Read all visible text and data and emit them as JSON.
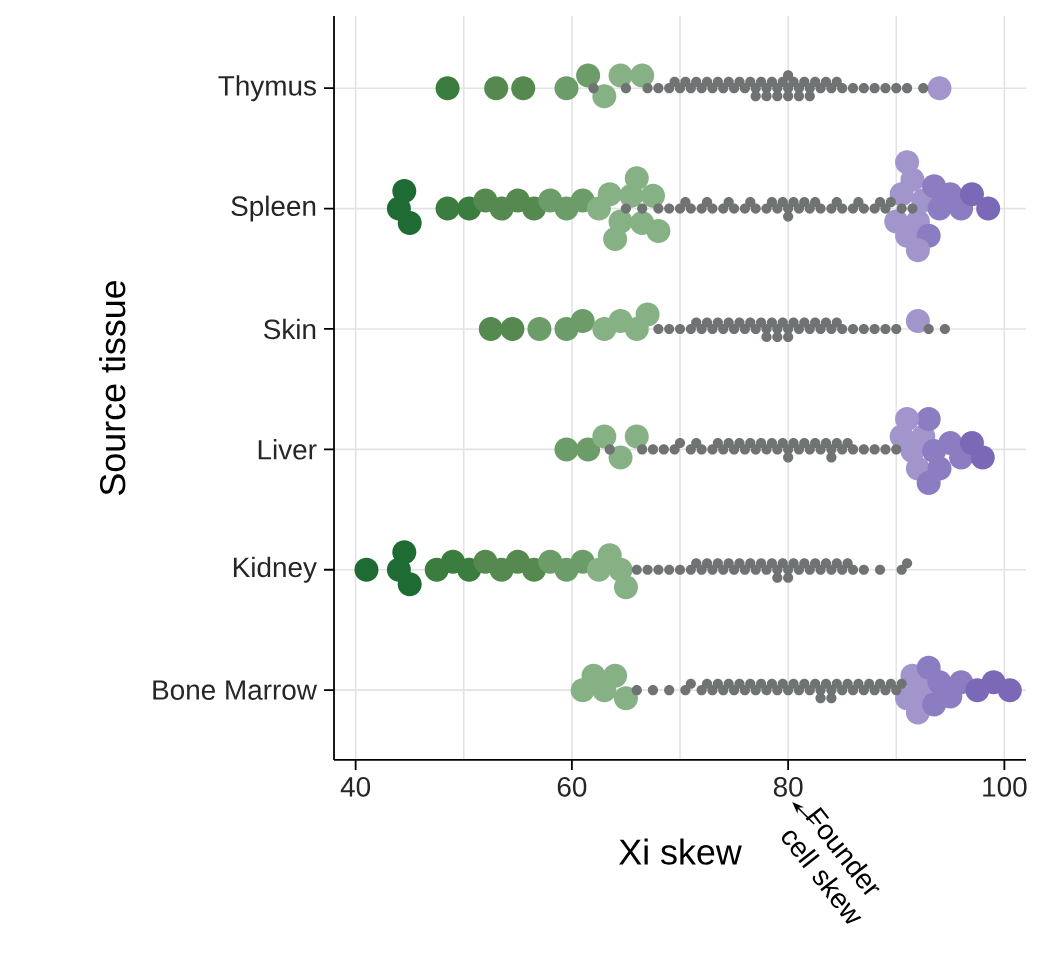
{
  "chart_data": {
    "type": "scatter",
    "orientation": "horizontal",
    "marker": "circle",
    "grid": true,
    "xlabel": "Xi skew",
    "ylabel": "Source tissue",
    "categories": [
      "Thymus",
      "Spleen",
      "Skin",
      "Liver",
      "Kidney",
      "Bone Marrow"
    ],
    "xlim": [
      38,
      102
    ],
    "xticks": [
      40,
      {
        "value": 50,
        "label": null
      },
      60,
      {
        "value": 70,
        "label": null
      },
      80,
      {
        "value": 90,
        "label": null
      },
      100
    ],
    "annotations": [
      "Founder cell skew"
    ],
    "series": [
      {
        "x": [
          "Thymus",
          "Thymus",
          "Thymus",
          "Thymus",
          "Thymus",
          "Thymus",
          "Thymus",
          "Thymus",
          "Thymus",
          "Thymus",
          "Thymus",
          "Thymus",
          "Thymus",
          "Thymus",
          "Thymus",
          "Thymus",
          "Thymus",
          "Thymus",
          "Thymus",
          "Thymus",
          "Thymus",
          "Thymus",
          "Thymus",
          "Thymus",
          "Thymus",
          "Thymus",
          "Thymus",
          "Thymus",
          "Thymus",
          "Thymus",
          "Thymus",
          "Thymus",
          "Thymus",
          "Thymus",
          "Thymus",
          "Thymus",
          "Thymus",
          "Thymus",
          "Thymus",
          "Thymus",
          "Thymus",
          "Thymus",
          "Thymus",
          "Thymus",
          "Thymus",
          "Thymus",
          "Thymus",
          "Thymus",
          "Thymus",
          "Thymus",
          "Thymus",
          "Thymus",
          "Thymus",
          "Thymus",
          "Thymus",
          "Thymus",
          "Thymus",
          "Thymus",
          "Thymus",
          "Thymus"
        ],
        "values": [
          62,
          65,
          67,
          68,
          69,
          69.5,
          70,
          70.5,
          71,
          71.5,
          72,
          72.5,
          73,
          73.5,
          74,
          74.5,
          75,
          75.5,
          76,
          76.5,
          77,
          77,
          77.5,
          78,
          78,
          78.5,
          79,
          79,
          79.5,
          80,
          80,
          80,
          80.5,
          81,
          81,
          81.5,
          82,
          82,
          82.5,
          83,
          83.5,
          84,
          84.5,
          85,
          86,
          87,
          88,
          89,
          90,
          91,
          92.5,
          48.5,
          53,
          55.5,
          59.5,
          61.5,
          63,
          64.5,
          66.5,
          94
        ],
        "colors": [
          "#707374",
          "#707374",
          "#707374",
          "#707374",
          "#707374",
          "#707374",
          "#707374",
          "#707374",
          "#707374",
          "#707374",
          "#707374",
          "#707374",
          "#707374",
          "#707374",
          "#707374",
          "#707374",
          "#707374",
          "#707374",
          "#707374",
          "#707374",
          "#707374",
          "#707374",
          "#707374",
          "#707374",
          "#707374",
          "#707374",
          "#707374",
          "#707374",
          "#707374",
          "#707374",
          "#707374",
          "#707374",
          "#707374",
          "#707374",
          "#707374",
          "#707374",
          "#707374",
          "#707374",
          "#707374",
          "#707374",
          "#707374",
          "#707374",
          "#707374",
          "#707374",
          "#707374",
          "#707374",
          "#707374",
          "#707374",
          "#707374",
          "#707374",
          "#707374",
          "#3a7d3f",
          "#55894f",
          "#55894f",
          "#6c9c68",
          "#6c9c68",
          "#86b184",
          "#86b184",
          "#86b184",
          "#a195cc"
        ],
        "sizes": [
          0.18,
          0.18,
          0.18,
          0.18,
          0.18,
          0.18,
          0.18,
          0.18,
          0.18,
          0.18,
          0.18,
          0.18,
          0.18,
          0.18,
          0.18,
          0.18,
          0.18,
          0.18,
          0.18,
          0.18,
          0.18,
          0.18,
          0.18,
          0.18,
          0.18,
          0.18,
          0.18,
          0.18,
          0.18,
          0.18,
          0.18,
          0.18,
          0.18,
          0.18,
          0.18,
          0.18,
          0.18,
          0.18,
          0.18,
          0.18,
          0.18,
          0.18,
          0.18,
          0.18,
          0.18,
          0.18,
          0.18,
          0.18,
          0.18,
          0.18,
          0.18,
          1,
          1,
          1,
          1,
          1,
          1,
          1,
          1,
          1
        ]
      },
      {
        "x": [
          "Spleen",
          "Spleen",
          "Spleen",
          "Spleen",
          "Spleen",
          "Spleen",
          "Spleen",
          "Spleen",
          "Spleen",
          "Spleen",
          "Spleen",
          "Spleen",
          "Spleen",
          "Spleen",
          "Spleen",
          "Spleen",
          "Spleen",
          "Spleen",
          "Spleen",
          "Spleen",
          "Spleen",
          "Spleen",
          "Spleen",
          "Spleen",
          "Spleen",
          "Spleen",
          "Spleen",
          "Spleen",
          "Spleen",
          "Spleen",
          "Spleen",
          "Spleen",
          "Spleen",
          "Spleen",
          "Spleen",
          "Spleen",
          "Spleen",
          "Spleen",
          "Spleen",
          "Spleen",
          "Spleen",
          "Spleen",
          "Spleen",
          "Spleen",
          "Spleen",
          "Spleen",
          "Spleen",
          "Spleen",
          "Spleen",
          "Spleen",
          "Spleen",
          "Spleen",
          "Spleen",
          "Spleen",
          "Spleen",
          "Spleen",
          "Spleen",
          "Spleen",
          "Spleen",
          "Spleen",
          "Spleen",
          "Spleen",
          "Spleen",
          "Spleen",
          "Spleen",
          "Spleen",
          "Spleen",
          "Spleen",
          "Spleen",
          "Spleen",
          "Spleen",
          "Spleen",
          "Spleen",
          "Spleen",
          "Spleen",
          "Spleen"
        ],
        "values": [
          65,
          66.5,
          68,
          69,
          70,
          70.5,
          71,
          72,
          72.5,
          73,
          74,
          74.5,
          75,
          76,
          76.5,
          77,
          78,
          78.5,
          79,
          79.5,
          80,
          80,
          80.5,
          81,
          81.5,
          82,
          82.5,
          83,
          84,
          84.5,
          85,
          86,
          86.5,
          87,
          88,
          88.5,
          89,
          89.5,
          90.5,
          91.5,
          44,
          44.5,
          45,
          48.5,
          50.5,
          52,
          53.5,
          55,
          56.5,
          58,
          59.5,
          61,
          62.5,
          63.5,
          64.5,
          65.5,
          66.5,
          67.5,
          68,
          66,
          64,
          90,
          90.5,
          91,
          91.5,
          92,
          92.5,
          93,
          93.5,
          94,
          95,
          96,
          97,
          98.5,
          91,
          92
        ],
        "colors": [
          "#707374",
          "#707374",
          "#707374",
          "#707374",
          "#707374",
          "#707374",
          "#707374",
          "#707374",
          "#707374",
          "#707374",
          "#707374",
          "#707374",
          "#707374",
          "#707374",
          "#707374",
          "#707374",
          "#707374",
          "#707374",
          "#707374",
          "#707374",
          "#707374",
          "#707374",
          "#707374",
          "#707374",
          "#707374",
          "#707374",
          "#707374",
          "#707374",
          "#707374",
          "#707374",
          "#707374",
          "#707374",
          "#707374",
          "#707374",
          "#707374",
          "#707374",
          "#707374",
          "#707374",
          "#707374",
          "#707374",
          "#1e6b34",
          "#1e6b34",
          "#1e6b34",
          "#3a7d3f",
          "#3a7d3f",
          "#55894f",
          "#55894f",
          "#55894f",
          "#55894f",
          "#6c9c68",
          "#6c9c68",
          "#6c9c68",
          "#86b184",
          "#86b184",
          "#86b184",
          "#86b184",
          "#86b184",
          "#86b184",
          "#86b184",
          "#86b184",
          "#86b184",
          "#a195cc",
          "#a195cc",
          "#a195cc",
          "#a195cc",
          "#a195cc",
          "#a195cc",
          "#8c7cc2",
          "#8c7cc2",
          "#8c7cc2",
          "#8c7cc2",
          "#8c7cc2",
          "#7b69b8",
          "#7b69b8",
          "#a195cc",
          "#a195cc"
        ],
        "sizes": [
          0.18,
          0.18,
          0.18,
          0.18,
          0.18,
          0.18,
          0.18,
          0.18,
          0.18,
          0.18,
          0.18,
          0.18,
          0.18,
          0.18,
          0.18,
          0.18,
          0.18,
          0.18,
          0.18,
          0.18,
          0.18,
          0.18,
          0.18,
          0.18,
          0.18,
          0.18,
          0.18,
          0.18,
          0.18,
          0.18,
          0.18,
          0.18,
          0.18,
          0.18,
          0.18,
          0.18,
          0.18,
          0.18,
          0.18,
          0.18,
          1,
          1,
          1,
          1,
          1,
          1,
          1,
          1,
          1,
          1,
          1,
          1,
          1,
          1,
          1,
          1,
          1,
          1,
          1,
          1,
          1,
          1,
          1,
          1,
          1,
          1,
          1,
          1,
          1,
          1,
          1,
          1,
          1,
          1,
          1,
          1
        ]
      },
      {
        "x": [
          "Skin",
          "Skin",
          "Skin",
          "Skin",
          "Skin",
          "Skin",
          "Skin",
          "Skin",
          "Skin",
          "Skin",
          "Skin",
          "Skin",
          "Skin",
          "Skin",
          "Skin",
          "Skin",
          "Skin",
          "Skin",
          "Skin",
          "Skin",
          "Skin",
          "Skin",
          "Skin",
          "Skin",
          "Skin",
          "Skin",
          "Skin",
          "Skin",
          "Skin",
          "Skin",
          "Skin",
          "Skin",
          "Skin",
          "Skin",
          "Skin",
          "Skin",
          "Skin",
          "Skin",
          "Skin",
          "Skin",
          "Skin",
          "Skin",
          "Skin",
          "Skin",
          "Skin",
          "Skin",
          "Skin",
          "Skin",
          "Skin",
          "Skin",
          "Skin",
          "Skin"
        ],
        "values": [
          68,
          69,
          70,
          71,
          71.5,
          72,
          72.5,
          73,
          73.5,
          74,
          74.5,
          75,
          75.5,
          76,
          76.5,
          77,
          77.5,
          78,
          78,
          78.5,
          79,
          79,
          79.5,
          80,
          80,
          80.5,
          81,
          81.5,
          82,
          82.5,
          83,
          83.5,
          84,
          84.5,
          85,
          86,
          87,
          88,
          89,
          90,
          93,
          94.5,
          52.5,
          54.5,
          57,
          59.5,
          61,
          63,
          64.5,
          66,
          67,
          92
        ],
        "colors": [
          "#707374",
          "#707374",
          "#707374",
          "#707374",
          "#707374",
          "#707374",
          "#707374",
          "#707374",
          "#707374",
          "#707374",
          "#707374",
          "#707374",
          "#707374",
          "#707374",
          "#707374",
          "#707374",
          "#707374",
          "#707374",
          "#707374",
          "#707374",
          "#707374",
          "#707374",
          "#707374",
          "#707374",
          "#707374",
          "#707374",
          "#707374",
          "#707374",
          "#707374",
          "#707374",
          "#707374",
          "#707374",
          "#707374",
          "#707374",
          "#707374",
          "#707374",
          "#707374",
          "#707374",
          "#707374",
          "#707374",
          "#707374",
          "#707374",
          "#55894f",
          "#55894f",
          "#6c9c68",
          "#6c9c68",
          "#6c9c68",
          "#86b184",
          "#86b184",
          "#86b184",
          "#86b184",
          "#a195cc"
        ],
        "sizes": [
          0.18,
          0.18,
          0.18,
          0.18,
          0.18,
          0.18,
          0.18,
          0.18,
          0.18,
          0.18,
          0.18,
          0.18,
          0.18,
          0.18,
          0.18,
          0.18,
          0.18,
          0.18,
          0.18,
          0.18,
          0.18,
          0.18,
          0.18,
          0.18,
          0.18,
          0.18,
          0.18,
          0.18,
          0.18,
          0.18,
          0.18,
          0.18,
          0.18,
          0.18,
          0.18,
          0.18,
          0.18,
          0.18,
          0.18,
          0.18,
          0.18,
          0.18,
          1,
          1,
          1,
          1,
          1,
          1,
          1,
          1,
          1,
          1
        ]
      },
      {
        "x": [
          "Liver",
          "Liver",
          "Liver",
          "Liver",
          "Liver",
          "Liver",
          "Liver",
          "Liver",
          "Liver",
          "Liver",
          "Liver",
          "Liver",
          "Liver",
          "Liver",
          "Liver",
          "Liver",
          "Liver",
          "Liver",
          "Liver",
          "Liver",
          "Liver",
          "Liver",
          "Liver",
          "Liver",
          "Liver",
          "Liver",
          "Liver",
          "Liver",
          "Liver",
          "Liver",
          "Liver",
          "Liver",
          "Liver",
          "Liver",
          "Liver",
          "Liver",
          "Liver",
          "Liver",
          "Liver",
          "Liver",
          "Liver",
          "Liver",
          "Liver",
          "Liver",
          "Liver",
          "Liver",
          "Liver",
          "Liver",
          "Liver",
          "Liver",
          "Liver",
          "Liver",
          "Liver",
          "Liver",
          "Liver",
          "Liver",
          "Liver",
          "Liver",
          "Liver",
          "Liver"
        ],
        "values": [
          63.5,
          66.5,
          67.5,
          68.5,
          69.5,
          70,
          71,
          71.5,
          72,
          73,
          73.5,
          74,
          74.5,
          75,
          75.5,
          76,
          76.5,
          77,
          77.5,
          78,
          78.5,
          79,
          79.5,
          80,
          80,
          80.5,
          81,
          81.5,
          82,
          82.5,
          83,
          83.5,
          84,
          84,
          84.5,
          85,
          85.5,
          86,
          87,
          88,
          89,
          90,
          59.5,
          61.5,
          63,
          64.5,
          66,
          90.5,
          91.5,
          92,
          92.5,
          93,
          93.5,
          94,
          95,
          96,
          97,
          98,
          91,
          93
        ],
        "colors": [
          "#707374",
          "#707374",
          "#707374",
          "#707374",
          "#707374",
          "#707374",
          "#707374",
          "#707374",
          "#707374",
          "#707374",
          "#707374",
          "#707374",
          "#707374",
          "#707374",
          "#707374",
          "#707374",
          "#707374",
          "#707374",
          "#707374",
          "#707374",
          "#707374",
          "#707374",
          "#707374",
          "#707374",
          "#707374",
          "#707374",
          "#707374",
          "#707374",
          "#707374",
          "#707374",
          "#707374",
          "#707374",
          "#707374",
          "#707374",
          "#707374",
          "#707374",
          "#707374",
          "#707374",
          "#707374",
          "#707374",
          "#707374",
          "#707374",
          "#6c9c68",
          "#6c9c68",
          "#86b184",
          "#86b184",
          "#86b184",
          "#a195cc",
          "#a195cc",
          "#a195cc",
          "#a195cc",
          "#8c7cc2",
          "#8c7cc2",
          "#8c7cc2",
          "#8c7cc2",
          "#8c7cc2",
          "#7b69b8",
          "#7b69b8",
          "#a195cc",
          "#8c7cc2"
        ],
        "sizes": [
          0.18,
          0.18,
          0.18,
          0.18,
          0.18,
          0.18,
          0.18,
          0.18,
          0.18,
          0.18,
          0.18,
          0.18,
          0.18,
          0.18,
          0.18,
          0.18,
          0.18,
          0.18,
          0.18,
          0.18,
          0.18,
          0.18,
          0.18,
          0.18,
          0.18,
          0.18,
          0.18,
          0.18,
          0.18,
          0.18,
          0.18,
          0.18,
          0.18,
          0.18,
          0.18,
          0.18,
          0.18,
          0.18,
          0.18,
          0.18,
          0.18,
          0.18,
          1,
          1,
          1,
          1,
          1,
          1,
          1,
          1,
          1,
          1,
          1,
          1,
          1,
          1,
          1,
          1,
          1,
          1
        ]
      },
      {
        "x": [
          "Kidney",
          "Kidney",
          "Kidney",
          "Kidney",
          "Kidney",
          "Kidney",
          "Kidney",
          "Kidney",
          "Kidney",
          "Kidney",
          "Kidney",
          "Kidney",
          "Kidney",
          "Kidney",
          "Kidney",
          "Kidney",
          "Kidney",
          "Kidney",
          "Kidney",
          "Kidney",
          "Kidney",
          "Kidney",
          "Kidney",
          "Kidney",
          "Kidney",
          "Kidney",
          "Kidney",
          "Kidney",
          "Kidney",
          "Kidney",
          "Kidney",
          "Kidney",
          "Kidney",
          "Kidney",
          "Kidney",
          "Kidney",
          "Kidney",
          "Kidney",
          "Kidney",
          "Kidney",
          "Kidney",
          "Kidney",
          "Kidney",
          "Kidney",
          "Kidney",
          "Kidney",
          "Kidney",
          "Kidney",
          "Kidney",
          "Kidney",
          "Kidney",
          "Kidney",
          "Kidney",
          "Kidney",
          "Kidney",
          "Kidney",
          "Kidney",
          "Kidney",
          "Kidney",
          "Kidney"
        ],
        "values": [
          66,
          67,
          68,
          69,
          70,
          71,
          71.5,
          72,
          72.5,
          73,
          73.5,
          74,
          74.5,
          75,
          75.5,
          76,
          76.5,
          77,
          77.5,
          78,
          78.5,
          79,
          79,
          79.5,
          80,
          80,
          80.5,
          81,
          81.5,
          82,
          82.5,
          83,
          83.5,
          84,
          84.5,
          85,
          85.5,
          86,
          87,
          88.5,
          90.5,
          91,
          41,
          44,
          44.5,
          45,
          47.5,
          49,
          50.5,
          52,
          53.5,
          55,
          56.5,
          58,
          59.5,
          61,
          62.5,
          63.5,
          64.5,
          65
        ],
        "colors": [
          "#707374",
          "#707374",
          "#707374",
          "#707374",
          "#707374",
          "#707374",
          "#707374",
          "#707374",
          "#707374",
          "#707374",
          "#707374",
          "#707374",
          "#707374",
          "#707374",
          "#707374",
          "#707374",
          "#707374",
          "#707374",
          "#707374",
          "#707374",
          "#707374",
          "#707374",
          "#707374",
          "#707374",
          "#707374",
          "#707374",
          "#707374",
          "#707374",
          "#707374",
          "#707374",
          "#707374",
          "#707374",
          "#707374",
          "#707374",
          "#707374",
          "#707374",
          "#707374",
          "#707374",
          "#707374",
          "#707374",
          "#707374",
          "#707374",
          "#1e6b34",
          "#1e6b34",
          "#1e6b34",
          "#1e6b34",
          "#3a7d3f",
          "#3a7d3f",
          "#3a7d3f",
          "#55894f",
          "#55894f",
          "#55894f",
          "#55894f",
          "#6c9c68",
          "#6c9c68",
          "#6c9c68",
          "#86b184",
          "#86b184",
          "#86b184",
          "#86b184"
        ],
        "sizes": [
          0.18,
          0.18,
          0.18,
          0.18,
          0.18,
          0.18,
          0.18,
          0.18,
          0.18,
          0.18,
          0.18,
          0.18,
          0.18,
          0.18,
          0.18,
          0.18,
          0.18,
          0.18,
          0.18,
          0.18,
          0.18,
          0.18,
          0.18,
          0.18,
          0.18,
          0.18,
          0.18,
          0.18,
          0.18,
          0.18,
          0.18,
          0.18,
          0.18,
          0.18,
          0.18,
          0.18,
          0.18,
          0.18,
          0.18,
          0.18,
          0.18,
          0.18,
          1,
          1,
          1,
          1,
          1,
          1,
          1,
          1,
          1,
          1,
          1,
          1,
          1,
          1,
          1,
          1,
          1,
          1
        ]
      },
      {
        "x": [
          "Bone Marrow",
          "Bone Marrow",
          "Bone Marrow",
          "Bone Marrow",
          "Bone Marrow",
          "Bone Marrow",
          "Bone Marrow",
          "Bone Marrow",
          "Bone Marrow",
          "Bone Marrow",
          "Bone Marrow",
          "Bone Marrow",
          "Bone Marrow",
          "Bone Marrow",
          "Bone Marrow",
          "Bone Marrow",
          "Bone Marrow",
          "Bone Marrow",
          "Bone Marrow",
          "Bone Marrow",
          "Bone Marrow",
          "Bone Marrow",
          "Bone Marrow",
          "Bone Marrow",
          "Bone Marrow",
          "Bone Marrow",
          "Bone Marrow",
          "Bone Marrow",
          "Bone Marrow",
          "Bone Marrow",
          "Bone Marrow",
          "Bone Marrow",
          "Bone Marrow",
          "Bone Marrow",
          "Bone Marrow",
          "Bone Marrow",
          "Bone Marrow",
          "Bone Marrow",
          "Bone Marrow",
          "Bone Marrow",
          "Bone Marrow",
          "Bone Marrow",
          "Bone Marrow",
          "Bone Marrow",
          "Bone Marrow",
          "Bone Marrow",
          "Bone Marrow",
          "Bone Marrow",
          "Bone Marrow",
          "Bone Marrow",
          "Bone Marrow",
          "Bone Marrow",
          "Bone Marrow",
          "Bone Marrow",
          "Bone Marrow",
          "Bone Marrow",
          "Bone Marrow",
          "Bone Marrow",
          "Bone Marrow",
          "Bone Marrow",
          "Bone Marrow",
          "Bone Marrow"
        ],
        "values": [
          66,
          67.5,
          69,
          70.5,
          71,
          72,
          72.5,
          73,
          73.5,
          74,
          74.5,
          75,
          75.5,
          76,
          76.5,
          77,
          77.5,
          78,
          78.5,
          79,
          79.5,
          80,
          80.5,
          81,
          81.5,
          82,
          82.5,
          83,
          83,
          83.5,
          84,
          84,
          84.5,
          85,
          85.5,
          86,
          86.5,
          87,
          87.5,
          88,
          88.5,
          89,
          89.5,
          90,
          90.5,
          61,
          62,
          63,
          64,
          65,
          91,
          91.5,
          92,
          92.5,
          93,
          93.5,
          94,
          95,
          96,
          97.5,
          99,
          100.5
        ],
        "colors": [
          "#707374",
          "#707374",
          "#707374",
          "#707374",
          "#707374",
          "#707374",
          "#707374",
          "#707374",
          "#707374",
          "#707374",
          "#707374",
          "#707374",
          "#707374",
          "#707374",
          "#707374",
          "#707374",
          "#707374",
          "#707374",
          "#707374",
          "#707374",
          "#707374",
          "#707374",
          "#707374",
          "#707374",
          "#707374",
          "#707374",
          "#707374",
          "#707374",
          "#707374",
          "#707374",
          "#707374",
          "#707374",
          "#707374",
          "#707374",
          "#707374",
          "#707374",
          "#707374",
          "#707374",
          "#707374",
          "#707374",
          "#707374",
          "#707374",
          "#707374",
          "#707374",
          "#707374",
          "#86b184",
          "#86b184",
          "#86b184",
          "#86b184",
          "#86b184",
          "#a195cc",
          "#a195cc",
          "#a195cc",
          "#a195cc",
          "#8c7cc2",
          "#8c7cc2",
          "#8c7cc2",
          "#8c7cc2",
          "#8c7cc2",
          "#7b69b8",
          "#7b69b8",
          "#7b69b8"
        ],
        "sizes": [
          0.18,
          0.18,
          0.18,
          0.18,
          0.18,
          0.18,
          0.18,
          0.18,
          0.18,
          0.18,
          0.18,
          0.18,
          0.18,
          0.18,
          0.18,
          0.18,
          0.18,
          0.18,
          0.18,
          0.18,
          0.18,
          0.18,
          0.18,
          0.18,
          0.18,
          0.18,
          0.18,
          0.18,
          0.18,
          0.18,
          0.18,
          0.18,
          0.18,
          0.18,
          0.18,
          0.18,
          0.18,
          0.18,
          0.18,
          0.18,
          0.18,
          0.18,
          0.18,
          0.18,
          0.18,
          1,
          1,
          1,
          1,
          1,
          1,
          1,
          1,
          1,
          1,
          1,
          1,
          1,
          1,
          1,
          1,
          1
        ]
      }
    ]
  }
}
